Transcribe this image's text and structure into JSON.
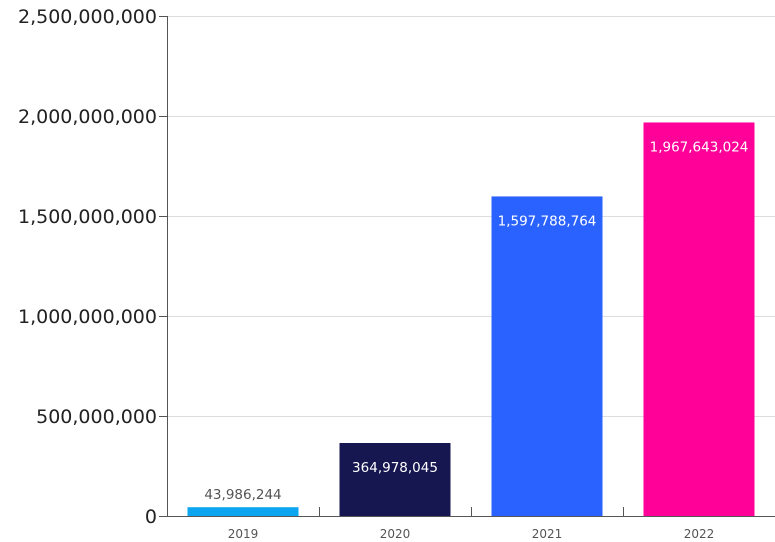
{
  "chart_data": {
    "type": "bar",
    "title": "",
    "xlabel": "",
    "ylabel": "",
    "categories": [
      "2019",
      "2020",
      "2021",
      "2022"
    ],
    "values": [
      43986244,
      364978045,
      1597788764,
      1967643024
    ],
    "value_labels": [
      "43,986,244",
      "364,978,045",
      "1,597,788,764",
      "1,967,643,024"
    ],
    "bar_colors": [
      "#0EA5F0",
      "#161650",
      "#2962FF",
      "#FF0099"
    ],
    "label_colors": [
      "#555555",
      "#ffffff",
      "#ffffff",
      "#ffffff"
    ],
    "label_position": [
      "above",
      "inside",
      "inside",
      "inside"
    ],
    "ylim": [
      0,
      2500000000
    ],
    "yticks": [
      0,
      500000000,
      1000000000,
      1500000000,
      2000000000,
      2500000000
    ],
    "ytick_labels": [
      "0",
      "500,000,000",
      "1,000,000,000",
      "1,500,000,000",
      "2,000,000,000",
      "2,500,000,000"
    ],
    "grid": true,
    "legend": "none"
  }
}
